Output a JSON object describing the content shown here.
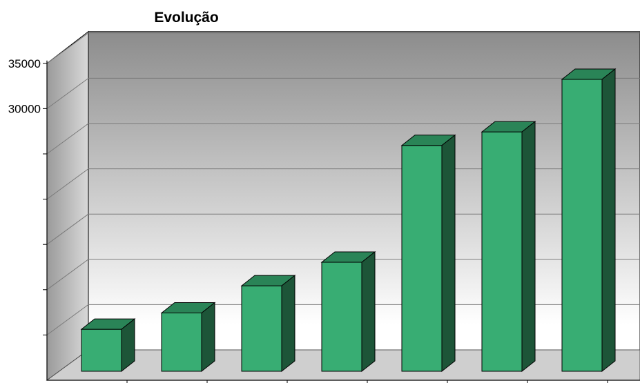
{
  "chart_data": {
    "type": "bar",
    "title": "Evolução",
    "xlabel": "",
    "ylabel": "",
    "categories": [
      "",
      "",
      "",
      "",
      "",
      "",
      ""
    ],
    "values": [
      4500,
      6300,
      9300,
      11900,
      24800,
      26300,
      32100
    ],
    "ylim": [
      0,
      35000
    ],
    "ytick_values": [
      5000,
      10000,
      15000,
      20000,
      25000,
      30000,
      35000
    ],
    "ytick_labels": [
      "",
      "",
      "",
      "",
      "",
      "30000",
      "35000"
    ],
    "grid": true,
    "legend": "none",
    "three_d": true
  },
  "colors": {
    "bar_front": "#38ad73",
    "bar_top": "#2a8457",
    "bar_side": "#1d5538",
    "back_wall_top": "#8c8c8c",
    "back_wall_bottom": "#ffffff",
    "side_wall": "#b8b8b8",
    "floor": "#cfcfcf",
    "grid": "#7a7a7a"
  }
}
